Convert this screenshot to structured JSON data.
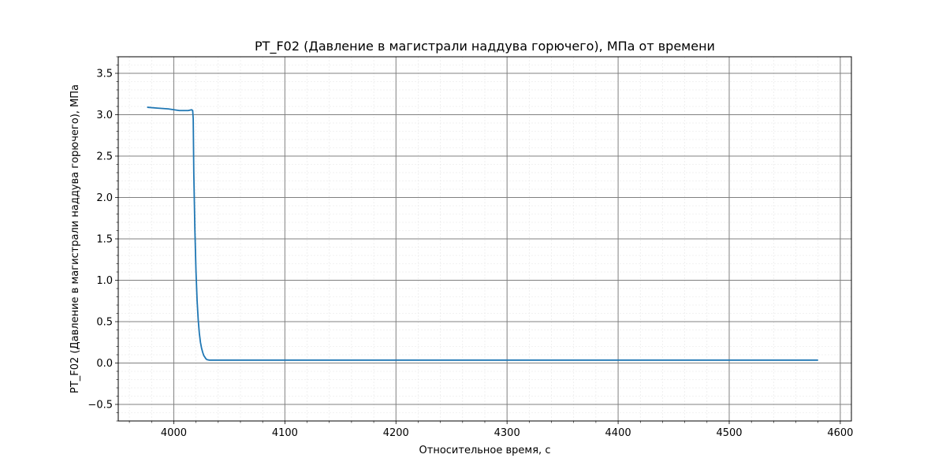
{
  "chart_data": {
    "type": "line",
    "title": "PT_F02 (Давление в магистрали наддува горючего), МПа от времени",
    "xlabel": "Относительное время, с",
    "ylabel": "PT_F02 (Давление в магистрали наддува горючего), МПа",
    "xlim": [
      3950,
      4610
    ],
    "ylim": [
      -0.7,
      3.7
    ],
    "xticks": [
      4000,
      4100,
      4200,
      4300,
      4400,
      4500,
      4600
    ],
    "yticks": [
      -0.5,
      0.0,
      0.5,
      1.0,
      1.5,
      2.0,
      2.5,
      3.0,
      3.5
    ],
    "xtick_labels": [
      "4000",
      "4100",
      "4200",
      "4300",
      "4400",
      "4500",
      "4600"
    ],
    "ytick_labels": [
      "−0.5",
      "0.0",
      "0.5",
      "1.0",
      "1.5",
      "2.0",
      "2.5",
      "3.0",
      "3.5"
    ],
    "grid": true,
    "minor_grid": true,
    "legend": "none",
    "colors": {
      "series": "#1f77b4",
      "major_grid": "#808080",
      "minor_grid": "#e6e6e6"
    },
    "series": [
      {
        "x": [
          3976,
          3985,
          3995,
          4005,
          4013,
          4016,
          4017,
          4017.5,
          4018,
          4019,
          4020,
          4021,
          4022,
          4023,
          4024,
          4025,
          4026,
          4027,
          4028,
          4029,
          4030,
          4032,
          4035,
          4040,
          4060,
          4100,
          4150,
          4200,
          4250,
          4300,
          4350,
          4400,
          4450,
          4500,
          4550,
          4580
        ],
        "y": [
          3.09,
          3.08,
          3.07,
          3.05,
          3.05,
          3.06,
          3.05,
          2.95,
          2.3,
          1.6,
          1.1,
          0.75,
          0.52,
          0.36,
          0.25,
          0.18,
          0.13,
          0.09,
          0.07,
          0.05,
          0.04,
          0.035,
          0.035,
          0.035,
          0.035,
          0.035,
          0.035,
          0.035,
          0.035,
          0.035,
          0.035,
          0.035,
          0.035,
          0.035,
          0.035,
          0.035
        ]
      }
    ]
  }
}
